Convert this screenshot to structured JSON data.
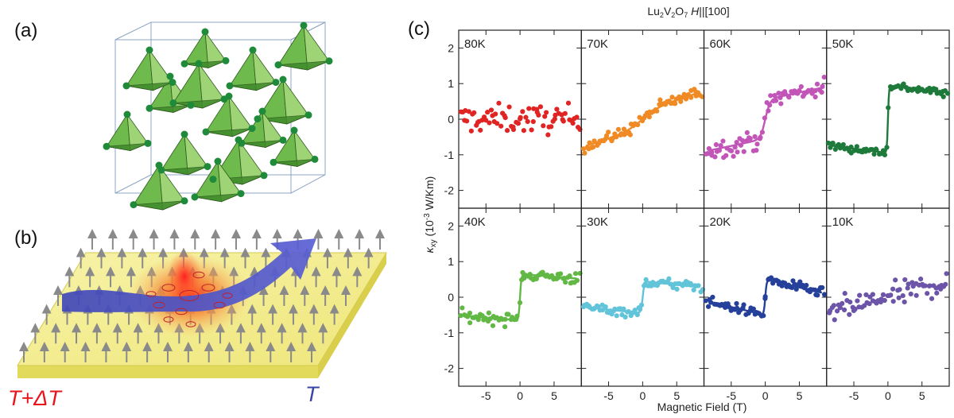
{
  "panels": {
    "a": "(a)",
    "b": "(b)",
    "c": "(c)"
  },
  "panel_b": {
    "hot_label": "T+ΔT",
    "cold_label": "T",
    "colors": {
      "hot": "#e8141c",
      "cold": "#3a44a8",
      "plate": "#f4ef8a",
      "arrow": "#4a50c4",
      "spin": "#8a8a8a"
    }
  },
  "panel_a": {
    "colors": {
      "tetra_light": "#9fd476",
      "tetra_mid": "#6fba4c",
      "tetra_dark": "#3f8a2a",
      "atom": "#1f8a3a",
      "cube": "#8fa4c4"
    }
  },
  "chart_data": {
    "type": "scatter",
    "title": "Lu2V2O7 H||[100]",
    "title_parts": {
      "compound": "Lu",
      "sub1": "2",
      "v": "V",
      "sub2": "2",
      "o": "O",
      "sub3": "7",
      "field": "H",
      "direction": "||[100]"
    },
    "xlabel": "Magnetic Field (T)",
    "ylabel": "κxy (10-3 W/Km)",
    "ylabel_parts": {
      "kappa": "κ",
      "sub": "xy",
      "open": " (10",
      "exp": "-3",
      "unit": " W/Km)"
    },
    "xlim": [
      -9,
      9
    ],
    "ylim": [
      -2.5,
      2.5
    ],
    "xticks": [
      -5,
      0,
      5
    ],
    "yticks": [
      -2,
      -1,
      0,
      1,
      2
    ],
    "series": [
      {
        "name": "80K",
        "color": "#e02424",
        "amp": 0.0,
        "slope": 0.0,
        "width": 0.0,
        "noise": 0.4,
        "fit": false
      },
      {
        "name": "70K",
        "color": "#f08a24",
        "amp": 0.25,
        "slope": 0.06,
        "width": 2.5,
        "noise": 0.17,
        "fit": true
      },
      {
        "name": "60K",
        "color": "#c255b8",
        "amp": 0.55,
        "slope": 0.04,
        "width": 0.7,
        "noise": 0.27,
        "fit": true
      },
      {
        "name": "50K",
        "color": "#1e7a3a",
        "amp": 0.95,
        "slope": -0.025,
        "width": 0.15,
        "noise": 0.12,
        "fit": true
      },
      {
        "name": "40K",
        "color": "#62b844",
        "amp": 0.65,
        "slope": -0.015,
        "width": 0.2,
        "noise": 0.17,
        "fit": true
      },
      {
        "name": "30K",
        "color": "#62c4d8",
        "amp": 0.45,
        "slope": -0.02,
        "width": 0.25,
        "noise": 0.15,
        "fit": true
      },
      {
        "name": "20K",
        "color": "#24409a",
        "amp": 0.5,
        "slope": -0.045,
        "width": 0.2,
        "noise": 0.14,
        "fit": true
      },
      {
        "name": "10K",
        "color": "#6c54a8",
        "amp": 0.0,
        "slope": 0.05,
        "width": 0.0,
        "noise": 0.35,
        "fit": false
      }
    ]
  }
}
